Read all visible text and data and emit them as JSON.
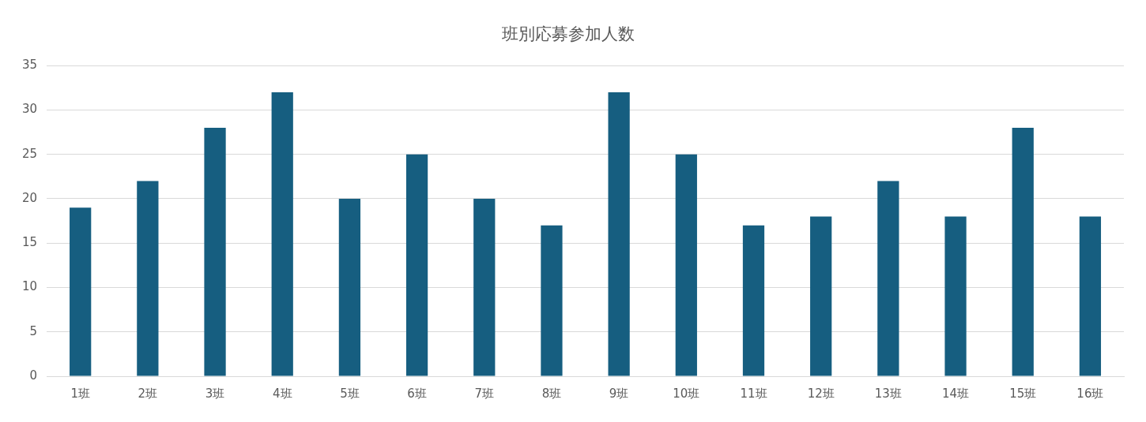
{
  "chart_data": {
    "type": "bar",
    "title": "班別応募参加人数",
    "categories": [
      "1班",
      "2班",
      "3班",
      "4班",
      "5班",
      "6班",
      "7班",
      "8班",
      "9班",
      "10班",
      "11班",
      "12班",
      "13班",
      "14班",
      "15班",
      "16班"
    ],
    "series": [
      {
        "color": "#165e80",
        "values": [
          19,
          22,
          28,
          32,
          20,
          25,
          20,
          17,
          32,
          25,
          17,
          18,
          22,
          18,
          28,
          18
        ]
      }
    ],
    "ylim": [
      0,
      35
    ],
    "yticks": [
      0,
      5,
      10,
      15,
      20,
      25,
      30,
      35
    ],
    "grid": "y",
    "legend": false
  }
}
